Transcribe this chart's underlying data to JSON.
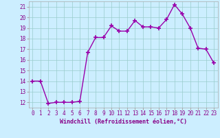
{
  "x": [
    0,
    1,
    2,
    3,
    4,
    5,
    6,
    7,
    8,
    9,
    10,
    11,
    12,
    13,
    14,
    15,
    16,
    17,
    18,
    19,
    20,
    21,
    22,
    23
  ],
  "y": [
    14.0,
    14.0,
    11.9,
    12.0,
    12.0,
    12.0,
    12.1,
    16.7,
    18.1,
    18.1,
    19.2,
    18.7,
    18.7,
    19.7,
    19.1,
    19.1,
    19.0,
    19.8,
    21.2,
    20.3,
    19.0,
    17.1,
    17.0,
    15.7
  ],
  "color": "#9900aa",
  "bg_color": "#cceeff",
  "grid_color": "#99cccc",
  "xlabel": "Windchill (Refroidissement éolien,°C)",
  "ylim_min": 11.5,
  "ylim_max": 21.5,
  "xlim_min": -0.5,
  "xlim_max": 23.5,
  "yticks": [
    12,
    13,
    14,
    15,
    16,
    17,
    18,
    19,
    20,
    21
  ],
  "xtick_labels": [
    "0",
    "1",
    "2",
    "3",
    "4",
    "5",
    "6",
    "7",
    "8",
    "9",
    "10",
    "11",
    "12",
    "13",
    "14",
    "15",
    "16",
    "17",
    "18",
    "19",
    "20",
    "21",
    "22",
    "23"
  ],
  "marker": "+",
  "marker_size": 4,
  "line_width": 1.0,
  "xlabel_fontsize": 6.0,
  "tick_fontsize": 5.5
}
